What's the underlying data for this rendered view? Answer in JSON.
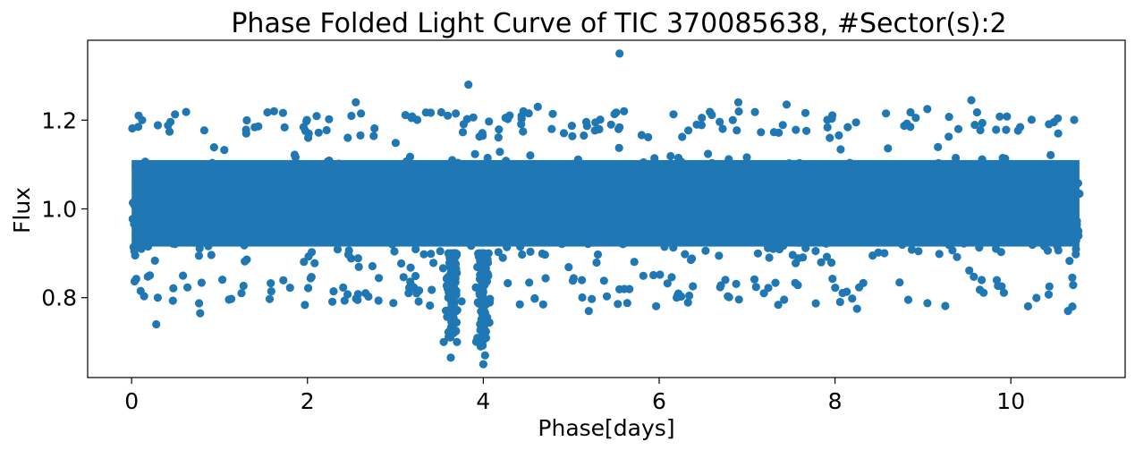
{
  "chart_data": {
    "type": "scatter",
    "title": "Phase Folded Light Curve of TIC 370085638, #Sector(s):2",
    "xlabel": "Phase[days]",
    "ylabel": "Flux",
    "xlim": [
      -0.5,
      11.3
    ],
    "ylim": [
      0.62,
      1.38
    ],
    "xticks": [
      0,
      2,
      4,
      6,
      8,
      10
    ],
    "xtick_labels": [
      "0",
      "2",
      "4",
      "6",
      "8",
      "10"
    ],
    "yticks": [
      0.8,
      1.0,
      1.2
    ],
    "ytick_labels": [
      "0.8",
      "1.0",
      "1.2"
    ],
    "grid": false,
    "marker_color": "#1f77b4",
    "series": [
      {
        "phase_range": [
          0.0,
          10.78
        ],
        "baseline_flux": 1.0,
        "core_flux_range": [
          0.88,
          1.14
        ],
        "transits": [
          {
            "center_phase": 3.65,
            "min_flux": 0.67
          },
          {
            "center_phase": 4.0,
            "min_flux": 0.65
          }
        ],
        "x": [
          5.55,
          3.83,
          2.55,
          0.08,
          0.12,
          1.62,
          6.9,
          7.45,
          9.55,
          9.05,
          0.28,
          0.78,
          1.25,
          4.62,
          5.6,
          8.58,
          10.65,
          10.7,
          3.63,
          3.7,
          3.55,
          4.0,
          4.02,
          3.97,
          5.2,
          8.25,
          6.2,
          3.15
        ],
        "y": [
          1.35,
          1.28,
          1.24,
          1.21,
          1.2,
          1.22,
          1.24,
          1.235,
          1.245,
          1.225,
          0.74,
          0.765,
          0.81,
          1.23,
          1.22,
          1.215,
          0.77,
          0.78,
          0.665,
          0.7,
          0.7,
          0.65,
          0.67,
          0.69,
          0.77,
          0.775,
          0.8,
          0.81
        ]
      }
    ]
  }
}
